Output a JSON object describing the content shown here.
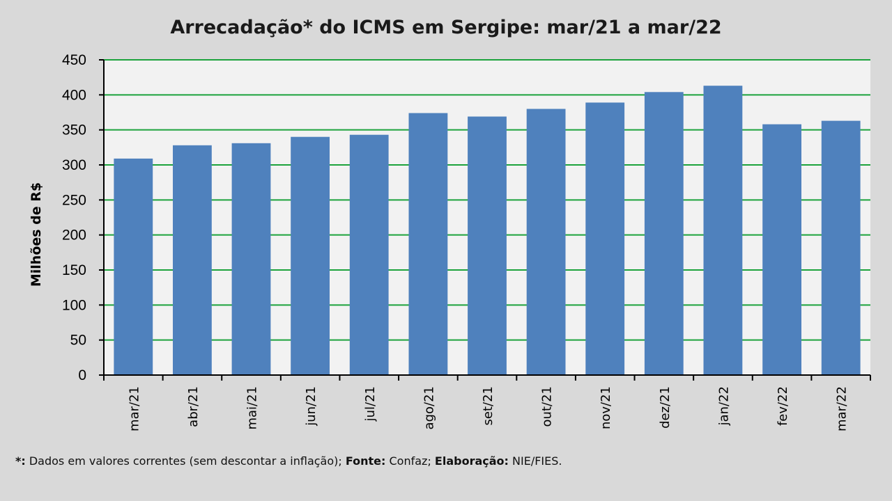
{
  "chart_data": {
    "type": "bar",
    "title": "Arrecadação* do ICMS em Sergipe: mar/21 a mar/22",
    "xlabel": "",
    "ylabel": "Milhões de R$",
    "categories": [
      "mar/21",
      "abr/21",
      "mai/21",
      "jun/21",
      "jul/21",
      "ago/21",
      "set/21",
      "out/21",
      "nov/21",
      "dez/21",
      "jan/22",
      "fev/22",
      "mar/22"
    ],
    "values": [
      309,
      328,
      331,
      340,
      343,
      374,
      369,
      380,
      389,
      404,
      413,
      358,
      363
    ],
    "ylim": [
      0,
      450
    ],
    "yticks": [
      0,
      50,
      100,
      150,
      200,
      250,
      300,
      350,
      400,
      450
    ],
    "grid": true,
    "legend": "none",
    "colors": {
      "bar": "#4f81bd",
      "grid": "#1ca33c",
      "plot_background": "#f2f2f2",
      "page_background": "#d9d9d9"
    }
  },
  "footnote": {
    "asterisk": "*:",
    "note": " Dados em valores correntes (sem descontar a inflação); ",
    "fonte_label": "Fonte:",
    "fonte_value": " Confaz; ",
    "elaboracao_label": "Elaboração:",
    "elaboracao_value": " NIE/FIES."
  }
}
